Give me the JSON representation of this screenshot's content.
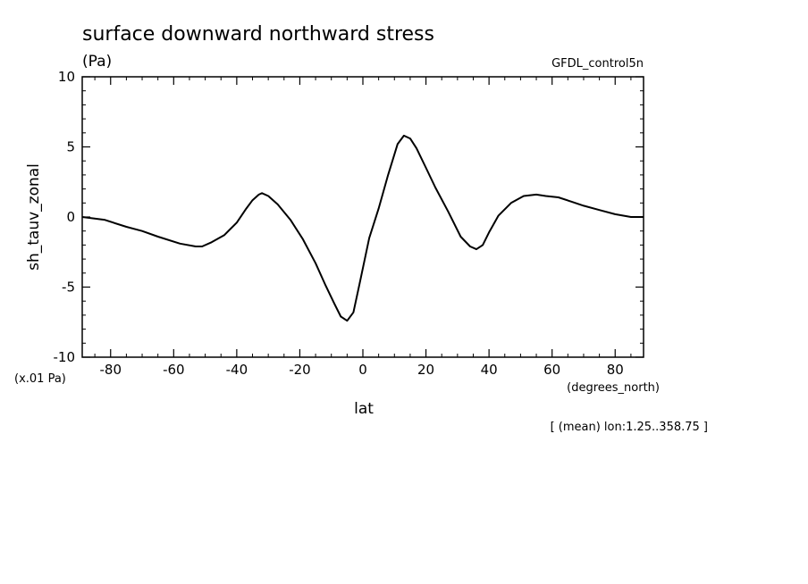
{
  "chart_data": {
    "type": "line",
    "title": "surface downward northward stress",
    "units": "(Pa)",
    "dataset": "GFDL_control5n",
    "ylabel": "sh_tauv_zonal",
    "yscale_note": "(x.01 Pa)",
    "xlabel": "lat",
    "xunits": "(degrees_north)",
    "footnote": "[ (mean) lon:1.25..358.75 ]",
    "xlim": [
      -89,
      89
    ],
    "ylim": [
      -10,
      10
    ],
    "xticks": [
      -80,
      -60,
      -40,
      -20,
      0,
      20,
      40,
      60,
      80
    ],
    "xtick_labels": [
      "-80",
      "-60",
      "-40",
      "-20",
      "0",
      "20",
      "40",
      "60",
      "80"
    ],
    "yticks": [
      -10,
      -5,
      0,
      5,
      10
    ],
    "ytick_labels": [
      "-10",
      "-5",
      "0",
      "5",
      "10"
    ],
    "grid": false,
    "legend": "none",
    "series": [
      {
        "x": [
          -89,
          -82,
          -75,
          -70,
          -65,
          -58,
          -53,
          -51,
          -48,
          -44,
          -40,
          -37,
          -35,
          -33,
          -32,
          -30,
          -27,
          -23,
          -19,
          -15,
          -12,
          -9,
          -7,
          -5,
          -3,
          -1,
          2,
          5,
          8,
          11,
          13,
          15,
          17,
          20,
          23,
          27,
          31,
          34,
          36,
          38,
          40,
          43,
          47,
          51,
          55,
          58,
          62,
          66,
          70,
          75,
          80,
          85,
          89
        ],
        "y": [
          0.0,
          -0.2,
          -0.7,
          -1.0,
          -1.4,
          -1.9,
          -2.1,
          -2.1,
          -1.8,
          -1.3,
          -0.4,
          0.6,
          1.2,
          1.6,
          1.7,
          1.5,
          0.9,
          -0.2,
          -1.6,
          -3.3,
          -4.8,
          -6.2,
          -7.1,
          -7.4,
          -6.8,
          -4.7,
          -1.5,
          0.6,
          3.0,
          5.2,
          5.8,
          5.6,
          4.9,
          3.5,
          2.1,
          0.4,
          -1.4,
          -2.1,
          -2.3,
          -2.0,
          -1.1,
          0.1,
          1.0,
          1.5,
          1.6,
          1.5,
          1.4,
          1.1,
          0.8,
          0.5,
          0.2,
          0.0,
          0.0
        ]
      }
    ]
  },
  "colors": {
    "line": "#000000",
    "axes": "#000000",
    "background": "#ffffff"
  }
}
